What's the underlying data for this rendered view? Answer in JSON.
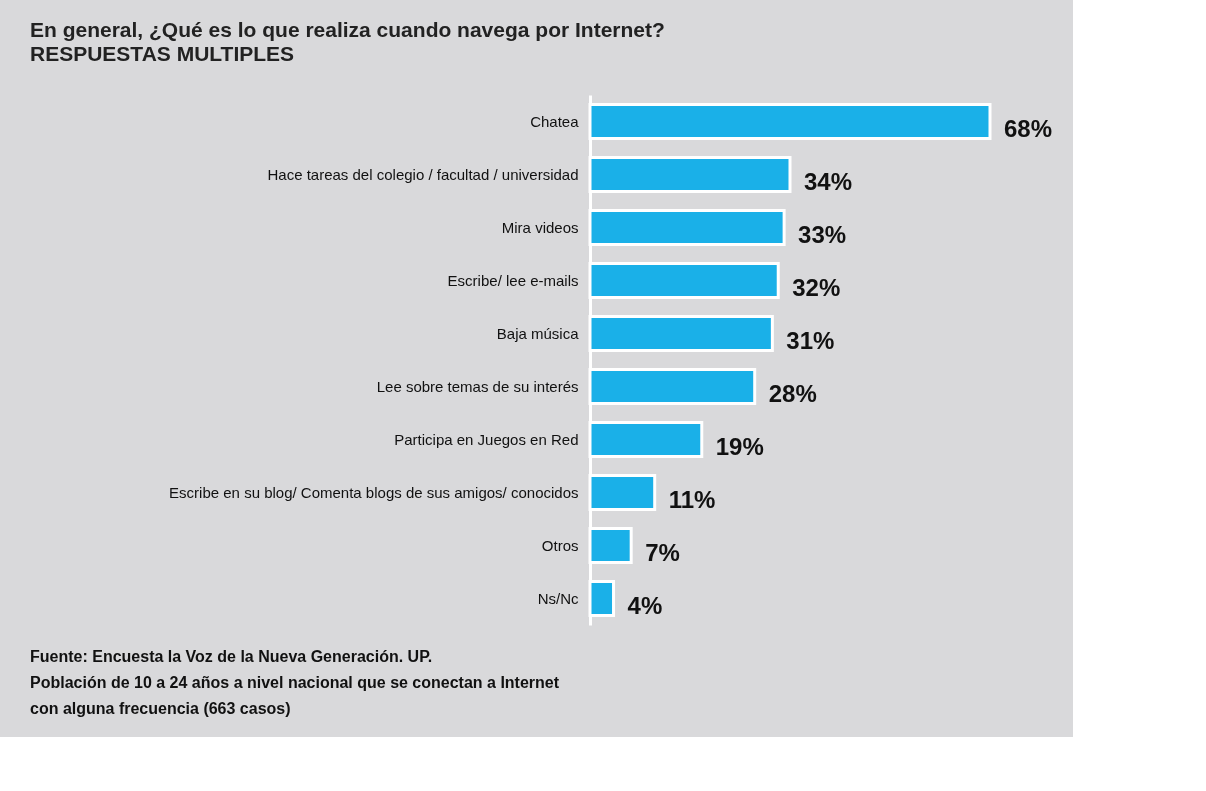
{
  "chart_data": {
    "type": "bar",
    "orientation": "horizontal",
    "title": "En general, ¿Qué es lo que realiza cuando navega por Internet?",
    "subtitle": "RESPUESTAS MULTIPLES",
    "categories": [
      "Chatea",
      "Hace tareas del colegio / facultad / universidad",
      "Mira videos",
      "Escribe/ lee e-mails",
      "Baja música",
      "Lee sobre temas de su interés",
      "Participa en Juegos en Red",
      "Escribe en su blog/ Comenta blogs de sus amigos/ conocidos",
      "Otros",
      "Ns/Nc"
    ],
    "values": [
      68,
      34,
      33,
      32,
      31,
      28,
      19,
      11,
      7,
      4
    ],
    "value_labels": [
      "68%",
      "34%",
      "33%",
      "32%",
      "31%",
      "28%",
      "19%",
      "11%",
      "7%",
      "4%"
    ],
    "color": "#1ab0e8",
    "annotations": [
      "Fuente: Encuesta la Voz de la Nueva Generación. UP.",
      "Población de 10 a 24 años a nivel nacional que se conectan a Internet",
      "con alguna frecuencia (663 casos)"
    ]
  }
}
